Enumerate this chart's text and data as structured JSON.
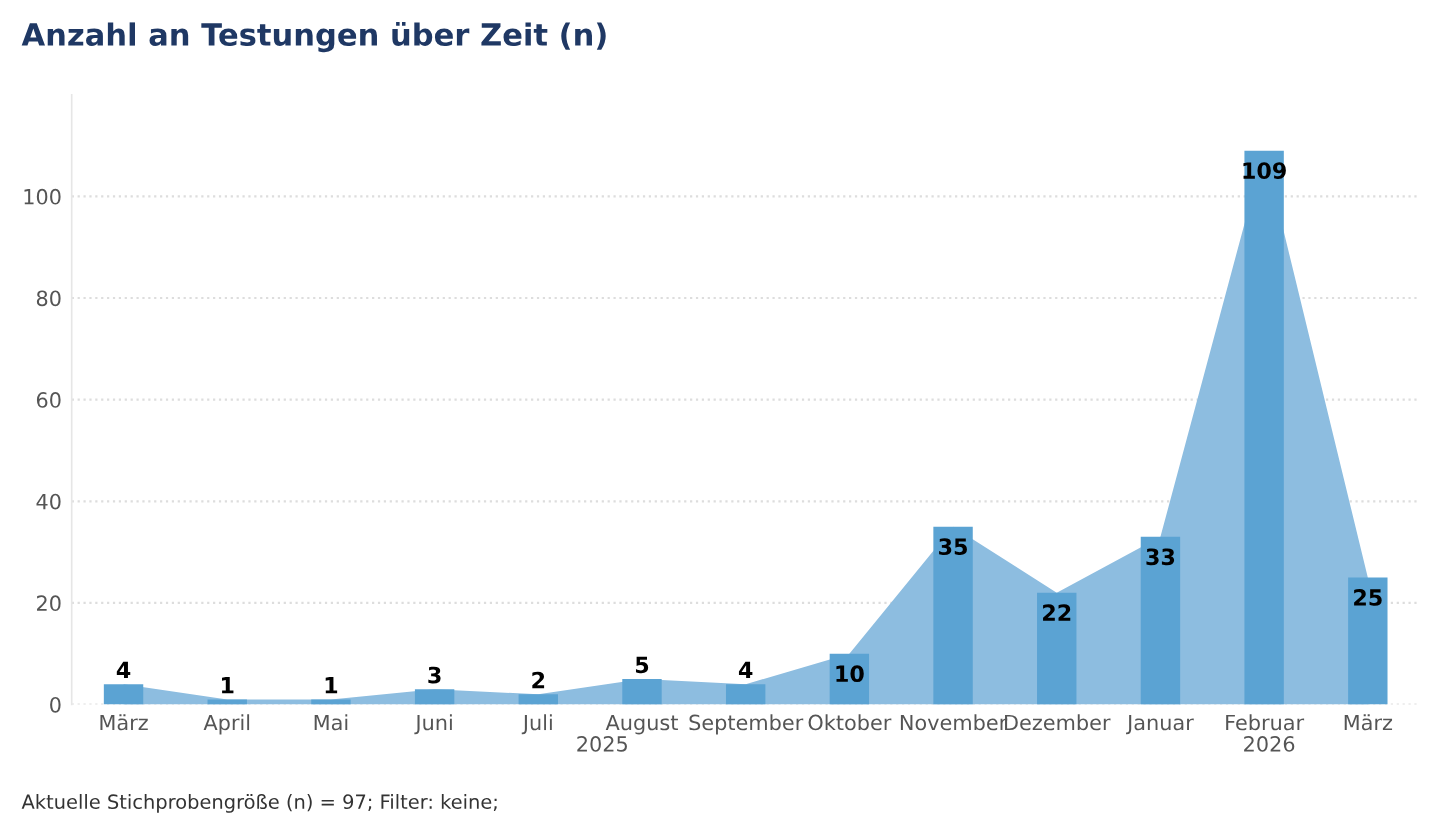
{
  "chart_data": {
    "type": "bar",
    "title": "Anzahl an Testungen über Zeit (n)",
    "categories": [
      "März",
      "April",
      "Mai",
      "Juni",
      "Juli",
      "August",
      "September",
      "Oktober",
      "November",
      "Dezember",
      "Januar",
      "Februar",
      "März"
    ],
    "series": [
      {
        "type": "area",
        "color": "#8dbde0",
        "values": [
          4,
          1,
          1,
          3,
          2,
          5,
          4,
          10,
          35,
          22,
          33,
          109,
          25
        ]
      },
      {
        "color": "#5ba3d3",
        "values": [
          4,
          1,
          1,
          3,
          2,
          5,
          4,
          10,
          35,
          22,
          33,
          109,
          25
        ],
        "value_labels": [
          "4",
          "1",
          "1",
          "3",
          "2",
          "5",
          "4",
          "10",
          "35",
          "22",
          "33",
          "109",
          "25"
        ]
      }
    ],
    "ylim": [
      0,
      120
    ],
    "yticks": [
      0,
      20,
      40,
      60,
      80,
      100
    ],
    "grid": "y",
    "annotations": [
      "2025",
      "2026",
      "Aktuelle Stichprobengröße (n) = 97; Filter: keine;"
    ]
  }
}
